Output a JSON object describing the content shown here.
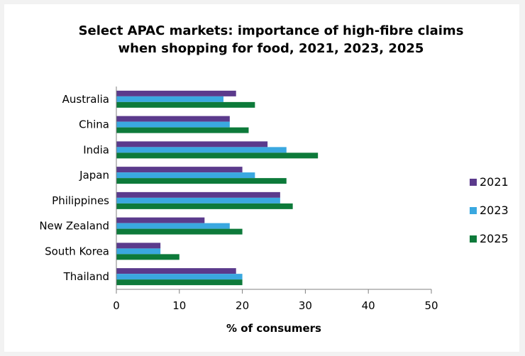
{
  "chart_data": {
    "type": "bar",
    "orientation": "horizontal",
    "title_line1": "Select APAC markets: importance of high-fibre claims",
    "title_line2": "when shopping for food, 2021, 2023, 2025",
    "xlabel": "% of consumers",
    "ylabel": "",
    "xlim": [
      0,
      50
    ],
    "xticks": [
      "0",
      "10",
      "20",
      "30",
      "40",
      "50"
    ],
    "grid": false,
    "legend_position": "right",
    "categories": [
      "Australia",
      "China",
      "India",
      "Japan",
      "Philippines",
      "New Zealand",
      "South Korea",
      "Thailand"
    ],
    "series": [
      {
        "name": "2021",
        "color": "#5b3a8c",
        "values": [
          19,
          18,
          24,
          20,
          26,
          14,
          7,
          19
        ]
      },
      {
        "name": "2023",
        "color": "#3aa8e0",
        "values": [
          17,
          18,
          27,
          22,
          26,
          18,
          7,
          20
        ]
      },
      {
        "name": "2025",
        "color": "#0d7a3a",
        "values": [
          22,
          21,
          32,
          27,
          28,
          20,
          10,
          20
        ]
      }
    ]
  }
}
